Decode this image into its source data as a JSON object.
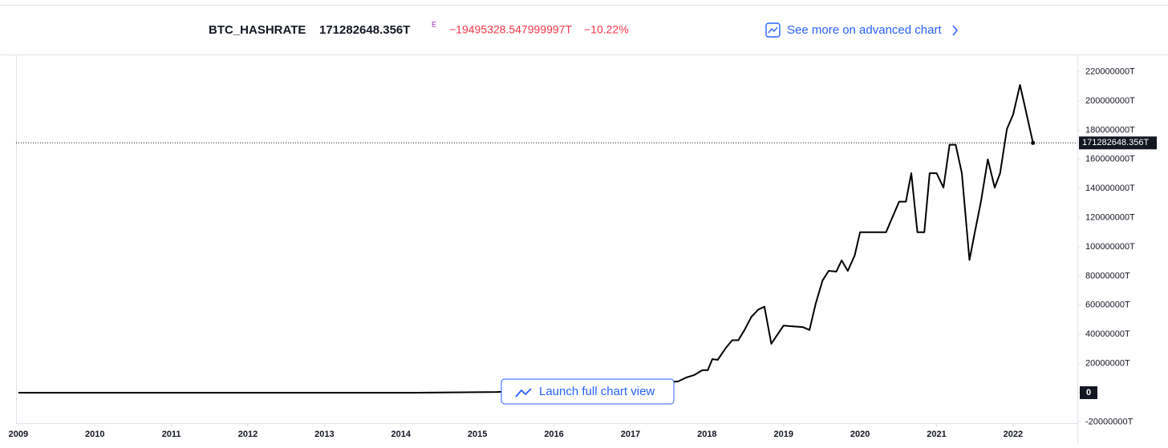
{
  "header": {
    "symbol": "BTC_HASHRATE",
    "price": "171282648.356T",
    "flag": "E",
    "change": "−19495328.547999997T",
    "change_percent": "−10.22%",
    "link": "See more on advanced chart"
  },
  "button": "Launch full chart view",
  "chart_data": {
    "type": "line",
    "x": [
      2009.0,
      2014.21,
      2015.26,
      2017.62,
      2017.73,
      2017.83,
      2017.94,
      2018.01,
      2018.07,
      2018.14,
      2018.25,
      2018.33,
      2018.41,
      2018.49,
      2018.58,
      2018.67,
      2018.75,
      2018.84,
      2018.91,
      2019.0,
      2019.09,
      2019.25,
      2019.34,
      2019.42,
      2019.51,
      2019.59,
      2019.69,
      2019.76,
      2019.84,
      2019.93,
      2020.0,
      2020.09,
      2020.34,
      2020.51,
      2020.6,
      2020.67,
      2020.75,
      2020.84,
      2020.91,
      2021.0,
      2021.09,
      2021.17,
      2021.25,
      2021.33,
      2021.43,
      2021.5,
      2021.58,
      2021.67,
      2021.76,
      2021.83,
      2021.92,
      2022.0,
      2022.09,
      2022.16,
      2022.26
    ],
    "series": [
      {
        "name": "BTC_HASHRATE",
        "color": "#000000",
        "values": [
          0,
          0,
          500000,
          7700000,
          10400000,
          12000000,
          15400000,
          15400000,
          23000000,
          22500000,
          31000000,
          36000000,
          36000000,
          43000000,
          52000000,
          57000000,
          59000000,
          33500000,
          39000000,
          46000000,
          45600000,
          45000000,
          43000000,
          61000000,
          77000000,
          83500000,
          83000000,
          90700000,
          83500000,
          94000000,
          110000000,
          110000000,
          110000000,
          131000000,
          131000000,
          150500000,
          110000000,
          110000000,
          150500000,
          150500000,
          140600000,
          170000000,
          170000000,
          150500000,
          91000000,
          110000000,
          131000000,
          160000000,
          140600000,
          150500000,
          180800000,
          190700000,
          211000000,
          195000000,
          171282648.356
        ]
      }
    ],
    "last_value_label": "171282648.356T",
    "xlim": [
      2008.97,
      2022.84
    ],
    "xticks": [
      2009,
      2010,
      2011,
      2012,
      2013,
      2014,
      2015,
      2016,
      2017,
      2018,
      2019,
      2020,
      2021,
      2022
    ],
    "ylim": [
      -20900000,
      231900000
    ],
    "yticks": [
      {
        "value": -20000000,
        "label": "-20000000T"
      },
      0,
      {
        "value": 20000000,
        "label": "20000000T"
      },
      {
        "value": 40000000,
        "label": "40000000T"
      },
      {
        "value": 60000000,
        "label": "60000000T"
      },
      {
        "value": 80000000,
        "label": "80000000T"
      },
      {
        "value": 100000000,
        "label": "100000000T"
      },
      {
        "value": 120000000,
        "label": "120000000T"
      },
      {
        "value": 140000000,
        "label": "140000000T"
      },
      {
        "value": 160000000,
        "label": "160000000T"
      },
      {
        "value": 180000000,
        "label": "180000000T"
      },
      {
        "value": 200000000,
        "label": "200000000T"
      },
      {
        "value": 220000000,
        "label": "220000000T"
      }
    ],
    "grid": false
  }
}
